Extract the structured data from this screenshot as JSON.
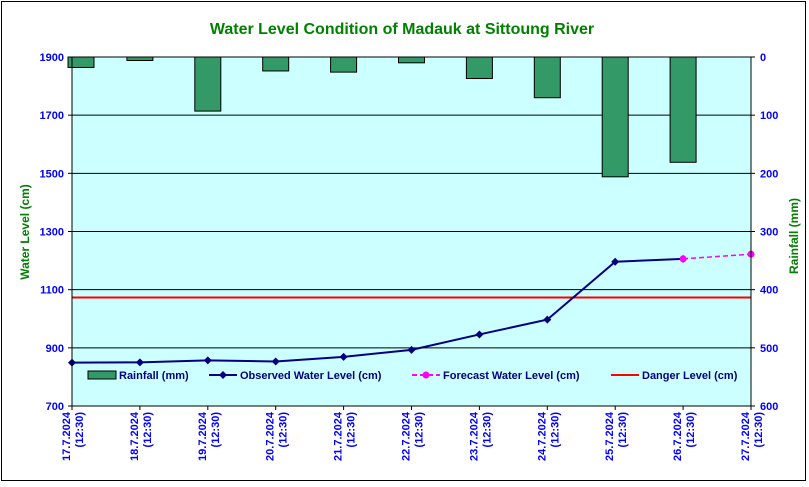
{
  "chart_data": {
    "type": "line",
    "title": "Water Level Condition of Madauk at Sittoung River",
    "ylabel": "Water Level (cm)",
    "y2label": "Rainfall (mm)",
    "ylim": [
      700,
      1900
    ],
    "y2lim": [
      0,
      600
    ],
    "y2_inverted": true,
    "yticks": [
      700,
      900,
      1100,
      1300,
      1500,
      1700,
      1900
    ],
    "y2ticks": [
      0,
      100,
      200,
      300,
      400,
      500,
      600
    ],
    "categories": [
      [
        "17.7.2024",
        "(12:30)"
      ],
      [
        "18.7.2024",
        "(12:30)"
      ],
      [
        "19.7.2024",
        "(12:30)"
      ],
      [
        "20.7.2024",
        "(12:30)"
      ],
      [
        "21.7.2024",
        "(12:30)"
      ],
      [
        "22.7.2024",
        "(12:30)"
      ],
      [
        "23.7.2024",
        "(12:30)"
      ],
      [
        "24.7.2024",
        "(12:30)"
      ],
      [
        "25.7.2024",
        "(12:30)"
      ],
      [
        "26.7.2024",
        "(12:30)"
      ],
      [
        "27.7.2024",
        "(12:30)"
      ]
    ],
    "rainfall": {
      "name": "Rainfall (mm)",
      "color": "#339966",
      "values": [
        18,
        6,
        93,
        24,
        26,
        10,
        37,
        70,
        206,
        181
      ]
    },
    "observed": {
      "name": "Observed Water Level (cm)",
      "color": "#000080",
      "values": [
        849,
        850,
        857,
        853,
        869,
        893,
        946,
        997,
        1196,
        1206
      ]
    },
    "forecast": {
      "name": "Forecast Water Level (cm)",
      "color": "#ff00ff",
      "points": [
        [
          9,
          1206
        ],
        [
          10,
          1222
        ]
      ]
    },
    "danger": {
      "name": "Danger Level (cm)",
      "color": "#ff0000",
      "value": 1073
    },
    "grid": true,
    "plot_background": "#ccffff",
    "title_color": "#008000",
    "tick_color": "#0000ff",
    "legend_placement": "bottom-inside"
  }
}
